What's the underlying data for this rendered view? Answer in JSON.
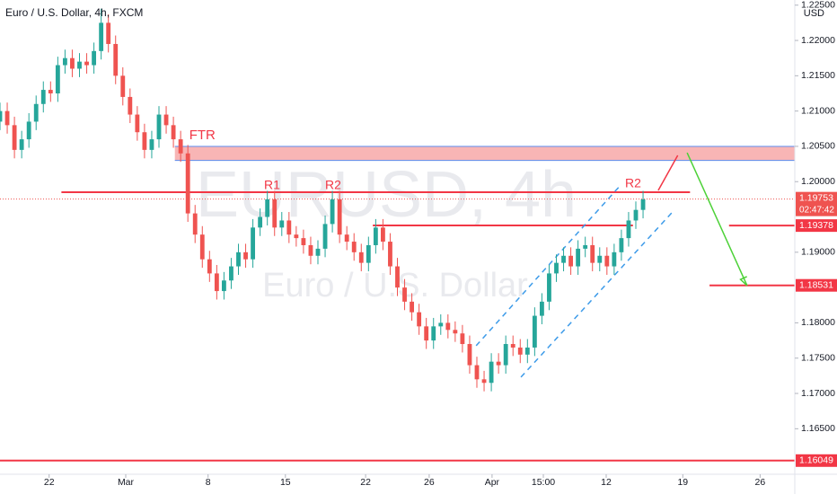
{
  "chart_data": {
    "type": "candlestick",
    "title": "Euro / U.S. Dollar, 4h, FXCM",
    "watermark": "EURUSD, 4h",
    "watermark_subtitle": "Euro / U.S. Dollar",
    "currency": "USD",
    "up_color": "#26a69a",
    "down_color": "#ef5350",
    "open": [
      1.2085,
      1.21,
      1.208,
      1.2045,
      1.206,
      1.2085,
      1.211,
      1.213,
      1.2125,
      1.2165,
      1.2175,
      1.216,
      1.217,
      1.2165,
      1.2185,
      1.2225,
      1.2195,
      1.215,
      1.212,
      1.2095,
      1.207,
      1.2045,
      1.206,
      1.2095,
      1.208,
      1.206,
      1.204,
      1.1955,
      1.1925,
      1.189,
      1.187,
      1.1845,
      1.186,
      1.188,
      1.19,
      1.189,
      1.1935,
      1.195,
      1.1975,
      1.1935,
      1.1945,
      1.1925,
      1.192,
      1.191,
      1.1895,
      1.1905,
      1.194,
      1.1975,
      1.1925,
      1.1915,
      1.19,
      1.1885,
      1.191,
      1.1935,
      1.1915,
      1.188,
      1.185,
      1.183,
      1.1815,
      1.1795,
      1.1775,
      1.1795,
      1.18,
      1.179,
      1.1785,
      1.177,
      1.174,
      1.172,
      1.1715,
      1.1745,
      1.174,
      1.177,
      1.1765,
      1.1755,
      1.1765,
      1.181,
      1.183,
      1.187,
      1.1885,
      1.1895,
      1.188,
      1.1905,
      1.191,
      1.1885,
      1.1895,
      1.188,
      1.19,
      1.192,
      1.1945,
      1.196
    ],
    "high": [
      1.2112,
      1.2112,
      1.2092,
      1.2072,
      1.2097,
      1.2122,
      1.2142,
      1.2142,
      1.2177,
      1.2187,
      1.2187,
      1.2182,
      1.2182,
      1.2197,
      1.2245,
      1.2237,
      1.2207,
      1.2162,
      1.2132,
      1.2107,
      1.2082,
      1.2072,
      1.2107,
      1.2107,
      1.2092,
      1.2072,
      1.2052,
      1.1967,
      1.1937,
      1.1902,
      1.1882,
      1.1872,
      1.1892,
      1.1912,
      1.1912,
      1.1947,
      1.1962,
      1.1987,
      1.1987,
      1.1957,
      1.1957,
      1.1937,
      1.1932,
      1.1922,
      1.1917,
      1.1952,
      1.1987,
      1.1987,
      1.1937,
      1.1927,
      1.1912,
      1.1922,
      1.1947,
      1.1947,
      1.1927,
      1.1892,
      1.1862,
      1.1842,
      1.1827,
      1.1807,
      1.1807,
      1.1812,
      1.1812,
      1.1802,
      1.1797,
      1.1782,
      1.1752,
      1.1732,
      1.1757,
      1.1757,
      1.1782,
      1.1782,
      1.1777,
      1.1777,
      1.1822,
      1.1842,
      1.1882,
      1.1897,
      1.1907,
      1.1907,
      1.1917,
      1.1922,
      1.1922,
      1.1907,
      1.1907,
      1.1912,
      1.1932,
      1.1957,
      1.1972,
      1.1987
    ],
    "low": [
      1.2073,
      1.2068,
      1.2033,
      1.2033,
      1.2048,
      1.2073,
      1.2098,
      1.2113,
      1.2113,
      1.2153,
      1.2148,
      1.2148,
      1.2153,
      1.2153,
      1.2173,
      1.2183,
      1.2138,
      1.2108,
      1.2083,
      1.2058,
      1.2033,
      1.2033,
      1.2048,
      1.2068,
      1.2048,
      1.2028,
      1.1943,
      1.1913,
      1.1878,
      1.1858,
      1.1833,
      1.1833,
      1.1848,
      1.1868,
      1.1878,
      1.1878,
      1.1923,
      1.1938,
      1.1923,
      1.1923,
      1.1913,
      1.1908,
      1.1898,
      1.1883,
      1.1883,
      1.1893,
      1.1928,
      1.1913,
      1.1903,
      1.1888,
      1.1873,
      1.1873,
      1.1898,
      1.1903,
      1.1868,
      1.1838,
      1.1818,
      1.1803,
      1.1783,
      1.1763,
      1.1763,
      1.1783,
      1.1778,
      1.1773,
      1.1758,
      1.1728,
      1.1708,
      1.1703,
      1.1703,
      1.1728,
      1.1728,
      1.1753,
      1.1743,
      1.1743,
      1.1753,
      1.1798,
      1.1818,
      1.1858,
      1.1873,
      1.1868,
      1.1868,
      1.1893,
      1.1873,
      1.1873,
      1.1868,
      1.1868,
      1.1888,
      1.1908,
      1.1933,
      1.1948
    ],
    "close": [
      1.21,
      1.208,
      1.2045,
      1.206,
      1.2085,
      1.211,
      1.213,
      1.2125,
      1.2165,
      1.2175,
      1.216,
      1.217,
      1.2165,
      1.2185,
      1.2225,
      1.2195,
      1.215,
      1.212,
      1.2095,
      1.207,
      1.2045,
      1.206,
      1.2095,
      1.208,
      1.206,
      1.204,
      1.1955,
      1.1925,
      1.189,
      1.187,
      1.1845,
      1.186,
      1.188,
      1.19,
      1.189,
      1.1935,
      1.195,
      1.1975,
      1.1935,
      1.1945,
      1.1925,
      1.192,
      1.191,
      1.1895,
      1.1905,
      1.194,
      1.1975,
      1.1925,
      1.1915,
      1.19,
      1.1885,
      1.191,
      1.1935,
      1.1915,
      1.188,
      1.185,
      1.183,
      1.1815,
      1.1795,
      1.1775,
      1.1795,
      1.18,
      1.179,
      1.1785,
      1.177,
      1.174,
      1.172,
      1.1715,
      1.1745,
      1.174,
      1.177,
      1.1765,
      1.1755,
      1.1765,
      1.181,
      1.183,
      1.187,
      1.1885,
      1.1895,
      1.188,
      1.1905,
      1.191,
      1.1885,
      1.1895,
      1.188,
      1.19,
      1.192,
      1.1945,
      1.196,
      1.1975
    ],
    "xlim": [
      0,
      110
    ],
    "xticks": [
      {
        "value": 6.8,
        "label": "22"
      },
      {
        "value": 17.4,
        "label": "Mar"
      },
      {
        "value": 28.8,
        "label": "8"
      },
      {
        "value": 39.5,
        "label": "15"
      },
      {
        "value": 50.6,
        "label": "22"
      },
      {
        "value": 59.4,
        "label": "26"
      },
      {
        "value": 68.1,
        "label": "Apr"
      },
      {
        "value": 75.2,
        "label": "15:00"
      },
      {
        "value": 83.9,
        "label": "12"
      },
      {
        "value": 94.5,
        "label": "19"
      },
      {
        "value": 105.2,
        "label": "26"
      }
    ],
    "ylim": [
      1.1583,
      1.22573
    ],
    "yticks": [
      {
        "value": 1.225,
        "label": "1.22500"
      },
      {
        "value": 1.22,
        "label": "1.22000"
      },
      {
        "value": 1.215,
        "label": "1.21500"
      },
      {
        "value": 1.21,
        "label": "1.21000"
      },
      {
        "value": 1.205,
        "label": "1.20500"
      },
      {
        "value": 1.2,
        "label": "1.20000"
      },
      {
        "value": 1.19,
        "label": "1.19000"
      },
      {
        "value": 1.18,
        "label": "1.18000"
      },
      {
        "value": 1.175,
        "label": "1.17500"
      },
      {
        "value": 1.17,
        "label": "1.17000"
      },
      {
        "value": 1.165,
        "label": "1.16500"
      }
    ],
    "last_price": 1.19753,
    "countdown": "02:47:42",
    "zone": {
      "label": "FTR",
      "low": 1.203,
      "high": 1.205,
      "x": [
        24.2,
        110
      ],
      "color": "#f7a8a8",
      "edge_color": "#5b8def"
    },
    "levels": [
      {
        "value": 1.1985,
        "x": [
          8.5,
          95.5
        ]
      },
      {
        "value": 1.1938,
        "x": [
          51.6,
          87.6
        ]
      },
      {
        "value": 1.19378,
        "x": [
          100.9,
          110
        ]
      },
      {
        "value": 1.18531,
        "x": [
          98.2,
          110
        ]
      },
      {
        "value": 1.16049,
        "x": [
          0,
          110
        ]
      }
    ],
    "level_color": "#f23645",
    "price_labels": [
      1.19378,
      1.18531,
      1.16049
    ],
    "labels": [
      "R1",
      "R2",
      "R2"
    ],
    "arrows": [
      {
        "x": [
          91.1,
          93.8
        ],
        "y": [
          1.19876,
          1.20372
        ],
        "color": "#f23645"
      },
      {
        "x": [
          95.1,
          103.4
        ],
        "y": [
          1.2041,
          1.18528
        ],
        "color": "#4cd137"
      }
    ],
    "channel": [
      {
        "x": [
          65.9,
          85.8
        ],
        "y": [
          1.17676,
          1.1994
        ]
      },
      {
        "x": [
          72.1,
          93.2
        ],
        "y": [
          1.17231,
          1.19584
        ]
      }
    ],
    "channel_color": "#3d9be9"
  }
}
